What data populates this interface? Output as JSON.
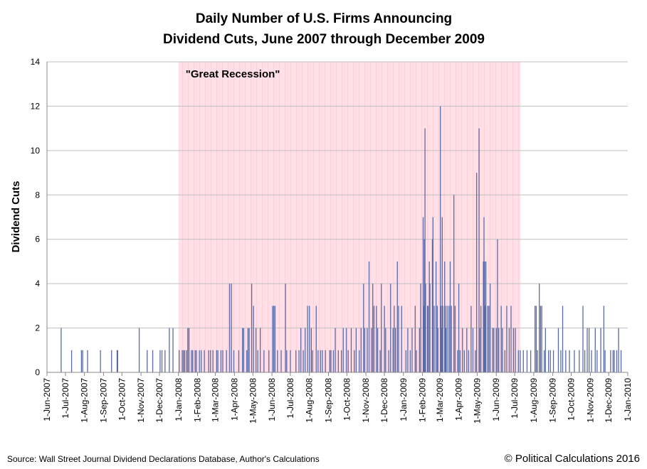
{
  "chart_data": {
    "type": "bar",
    "title": [
      "Daily Number of U.S. Firms Announcing",
      "Dividend Cuts, June 2007 through December 2009"
    ],
    "ylabel": "Dividend Cuts",
    "source": "Source: Wall Street Journal Dividend Declarations Database, Author's Calculations",
    "credit": "© Political Calculations 2016",
    "shaded_region": {
      "label": "\"Great Recession\"",
      "start": "2008-01-01",
      "end": "2009-07-10",
      "color": "#ffe0e6"
    },
    "color": "#5b6ba6",
    "grid": true,
    "xlim": [
      "2007-06-01",
      "2010-01-01"
    ],
    "ylim": [
      0,
      14
    ],
    "yticks": [
      0,
      2,
      4,
      6,
      8,
      10,
      12,
      14
    ],
    "xticks": [
      {
        "value": "2007-06-01",
        "label": "1-Jun-2007"
      },
      {
        "value": "2007-07-01",
        "label": "1-Jul-2007"
      },
      {
        "value": "2007-08-01",
        "label": "1-Aug-2007"
      },
      {
        "value": "2007-09-01",
        "label": "1-Sep-2007"
      },
      {
        "value": "2007-10-01",
        "label": "1-Oct-2007"
      },
      {
        "value": "2007-11-01",
        "label": "1-Nov-2007"
      },
      {
        "value": "2007-12-01",
        "label": "1-Dec-2007"
      },
      {
        "value": "2008-01-01",
        "label": "1-Jan-2008"
      },
      {
        "value": "2008-02-01",
        "label": "1-Feb-2008"
      },
      {
        "value": "2008-03-01",
        "label": "1-Mar-2008"
      },
      {
        "value": "2008-04-01",
        "label": "1-Apr-2008"
      },
      {
        "value": "2008-05-01",
        "label": "1-May-2008"
      },
      {
        "value": "2008-06-01",
        "label": "1-Jun-2008"
      },
      {
        "value": "2008-07-01",
        "label": "1-Jul-2008"
      },
      {
        "value": "2008-08-01",
        "label": "1-Aug-2008"
      },
      {
        "value": "2008-09-01",
        "label": "1-Sep-2008"
      },
      {
        "value": "2008-10-01",
        "label": "1-Oct-2008"
      },
      {
        "value": "2008-11-01",
        "label": "1-Nov-2008"
      },
      {
        "value": "2008-12-01",
        "label": "1-Dec-2008"
      },
      {
        "value": "2009-01-01",
        "label": "1-Jan-2009"
      },
      {
        "value": "2009-02-01",
        "label": "1-Feb-2009"
      },
      {
        "value": "2009-03-01",
        "label": "1-Mar-2009"
      },
      {
        "value": "2009-04-01",
        "label": "1-Apr-2009"
      },
      {
        "value": "2009-05-01",
        "label": "1-May-2009"
      },
      {
        "value": "2009-06-01",
        "label": "1-Jun-2009"
      },
      {
        "value": "2009-07-01",
        "label": "1-Jul-2009"
      },
      {
        "value": "2009-08-01",
        "label": "1-Aug-2009"
      },
      {
        "value": "2009-09-01",
        "label": "1-Sep-2009"
      },
      {
        "value": "2009-10-01",
        "label": "1-Oct-2009"
      },
      {
        "value": "2009-11-01",
        "label": "1-Nov-2009"
      },
      {
        "value": "2009-12-01",
        "label": "1-Dec-2009"
      },
      {
        "value": "2010-01-01",
        "label": "1-Jan-2010"
      }
    ],
    "x": [
      "2007-06-24",
      "2007-07-11",
      "2007-07-27",
      "2007-07-29",
      "2007-08-06",
      "2007-08-27",
      "2007-09-14",
      "2007-09-23",
      "2007-09-24",
      "2007-10-29",
      "2007-11-11",
      "2007-11-20",
      "2007-12-02",
      "2007-12-05",
      "2007-12-10",
      "2007-12-17",
      "2007-12-23",
      "2008-01-02",
      "2008-01-07",
      "2008-01-09",
      "2008-01-11",
      "2008-01-14",
      "2008-01-16",
      "2008-01-18",
      "2008-01-22",
      "2008-01-24",
      "2008-01-28",
      "2008-01-30",
      "2008-02-04",
      "2008-02-07",
      "2008-02-12",
      "2008-02-19",
      "2008-02-22",
      "2008-02-26",
      "2008-03-03",
      "2008-03-05",
      "2008-03-10",
      "2008-03-13",
      "2008-03-19",
      "2008-03-24",
      "2008-03-27",
      "2008-03-31",
      "2008-04-08",
      "2008-04-14",
      "2008-04-16",
      "2008-04-21",
      "2008-04-23",
      "2008-04-25",
      "2008-04-29",
      "2008-05-02",
      "2008-05-06",
      "2008-05-09",
      "2008-05-13",
      "2008-05-19",
      "2008-05-27",
      "2008-06-02",
      "2008-06-04",
      "2008-06-06",
      "2008-06-10",
      "2008-06-16",
      "2008-06-23",
      "2008-06-25",
      "2008-07-01",
      "2008-07-10",
      "2008-07-15",
      "2008-07-18",
      "2008-07-22",
      "2008-07-25",
      "2008-07-29",
      "2008-08-01",
      "2008-08-04",
      "2008-08-06",
      "2008-08-12",
      "2008-08-15",
      "2008-08-19",
      "2008-08-22",
      "2008-08-27",
      "2008-09-03",
      "2008-09-05",
      "2008-09-09",
      "2008-09-12",
      "2008-09-17",
      "2008-09-22",
      "2008-09-25",
      "2008-09-30",
      "2008-10-03",
      "2008-10-08",
      "2008-10-13",
      "2008-10-16",
      "2008-10-21",
      "2008-10-24",
      "2008-10-28",
      "2008-10-30",
      "2008-11-03",
      "2008-11-06",
      "2008-11-10",
      "2008-11-12",
      "2008-11-14",
      "2008-11-18",
      "2008-11-20",
      "2008-11-24",
      "2008-11-26",
      "2008-12-01",
      "2008-12-03",
      "2008-12-08",
      "2008-12-11",
      "2008-12-15",
      "2008-12-17",
      "2008-12-19",
      "2008-12-22",
      "2008-12-24",
      "2008-12-29",
      "2009-01-05",
      "2009-01-08",
      "2009-01-12",
      "2009-01-15",
      "2009-01-20",
      "2009-01-22",
      "2009-01-27",
      "2009-01-29",
      "2009-02-02",
      "2009-02-03",
      "2009-02-04",
      "2009-02-05",
      "2009-02-06",
      "2009-02-09",
      "2009-02-10",
      "2009-02-12",
      "2009-02-13",
      "2009-02-17",
      "2009-02-18",
      "2009-02-20",
      "2009-02-23",
      "2009-02-25",
      "2009-02-26",
      "2009-03-02",
      "2009-03-03",
      "2009-03-04",
      "2009-03-05",
      "2009-03-06",
      "2009-03-09",
      "2009-03-10",
      "2009-03-11",
      "2009-03-13",
      "2009-03-16",
      "2009-03-18",
      "2009-03-20",
      "2009-03-24",
      "2009-03-26",
      "2009-03-30",
      "2009-04-01",
      "2009-04-03",
      "2009-04-07",
      "2009-04-10",
      "2009-04-14",
      "2009-04-17",
      "2009-04-21",
      "2009-04-24",
      "2009-04-28",
      "2009-04-30",
      "2009-05-04",
      "2009-05-05",
      "2009-05-07",
      "2009-05-11",
      "2009-05-12",
      "2009-05-13",
      "2009-05-14",
      "2009-05-15",
      "2009-05-18",
      "2009-05-20",
      "2009-05-22",
      "2009-05-26",
      "2009-05-28",
      "2009-06-01",
      "2009-06-03",
      "2009-06-05",
      "2009-06-09",
      "2009-06-11",
      "2009-06-15",
      "2009-06-18",
      "2009-06-22",
      "2009-06-25",
      "2009-06-29",
      "2009-07-02",
      "2009-07-07",
      "2009-07-10",
      "2009-07-15",
      "2009-07-21",
      "2009-07-27",
      "2009-08-03",
      "2009-08-05",
      "2009-08-07",
      "2009-08-10",
      "2009-08-12",
      "2009-08-14",
      "2009-08-18",
      "2009-08-20",
      "2009-08-25",
      "2009-08-28",
      "2009-09-02",
      "2009-09-10",
      "2009-09-14",
      "2009-09-17",
      "2009-09-22",
      "2009-09-28",
      "2009-10-06",
      "2009-10-14",
      "2009-10-20",
      "2009-10-23",
      "2009-10-27",
      "2009-10-30",
      "2009-11-03",
      "2009-11-09",
      "2009-11-12",
      "2009-11-18",
      "2009-11-23",
      "2009-11-25",
      "2009-12-04",
      "2009-12-08",
      "2009-12-10",
      "2009-12-14",
      "2009-12-17",
      "2009-12-21"
    ],
    "values": [
      2,
      1,
      1,
      1,
      1,
      1,
      1,
      1,
      1,
      2,
      1,
      1,
      1,
      1,
      1,
      2,
      2,
      1,
      1,
      1,
      1,
      1,
      2,
      2,
      1,
      1,
      1,
      1,
      1,
      1,
      1,
      1,
      1,
      1,
      1,
      1,
      1,
      1,
      1,
      4,
      4,
      1,
      1,
      2,
      2,
      1,
      2,
      2,
      4,
      3,
      2,
      1,
      2,
      1,
      1,
      3,
      3,
      3,
      1,
      1,
      4,
      1,
      1,
      1,
      1,
      2,
      1,
      2,
      3,
      3,
      2,
      1,
      3,
      1,
      1,
      1,
      1,
      1,
      1,
      1,
      2,
      1,
      1,
      2,
      2,
      1,
      2,
      1,
      2,
      1,
      2,
      4,
      2,
      2,
      5,
      2,
      4,
      3,
      3,
      2,
      1,
      4,
      3,
      2,
      1,
      4,
      2,
      3,
      2,
      5,
      3,
      3,
      1,
      2,
      1,
      2,
      3,
      1,
      2,
      4,
      7,
      3,
      6,
      11,
      4,
      3,
      3,
      5,
      4,
      6,
      7,
      3,
      5,
      3,
      2,
      12,
      3,
      2,
      7,
      3,
      5,
      3,
      2,
      3,
      3,
      5,
      3,
      8,
      3,
      1,
      4,
      1,
      2,
      1,
      2,
      1,
      3,
      2,
      1,
      9,
      11,
      2,
      3,
      5,
      7,
      5,
      3,
      5,
      3,
      3,
      4,
      2,
      2,
      2,
      6,
      2,
      3,
      2,
      1,
      3,
      2,
      3,
      2,
      2,
      1,
      1,
      1,
      1,
      1,
      3,
      3,
      1,
      4,
      3,
      3,
      1,
      2,
      1,
      1,
      1,
      2,
      1,
      3,
      1,
      1,
      1,
      1,
      3,
      1,
      2,
      2,
      1,
      2,
      1,
      2,
      3,
      1,
      1,
      1,
      1,
      1,
      2,
      1
    ]
  }
}
